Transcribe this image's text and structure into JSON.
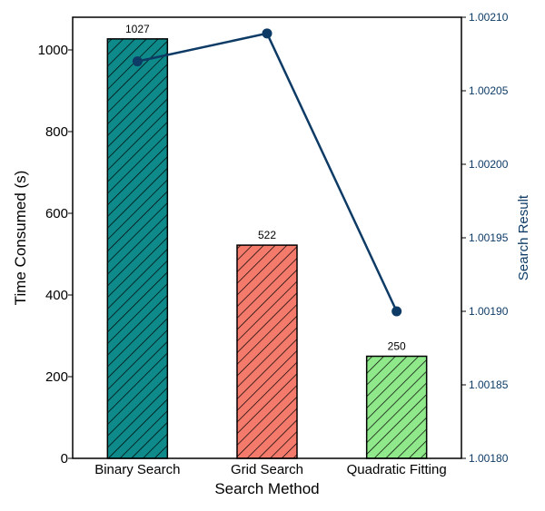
{
  "chart_data": {
    "type": "bar",
    "xlabel": "Search Method",
    "ylabel": "Time Consumed (s)",
    "y2label": "Search Result",
    "categories": [
      "Binary Search",
      "Grid Search",
      "Quadratic Fitting"
    ],
    "series": [
      {
        "name": "Time Consumed (s)",
        "type": "bar",
        "axis": "left",
        "values": [
          1027,
          522,
          250
        ],
        "colors": [
          "#0f8a8a",
          "#f47a6b",
          "#8fe88a"
        ]
      },
      {
        "name": "Search Result",
        "type": "line",
        "axis": "right",
        "values": [
          1.00207,
          1.002089,
          1.0019
        ],
        "color": "#0d3b66"
      }
    ],
    "data_labels": [
      "1027",
      "522",
      "250"
    ],
    "ylim": [
      0,
      1080
    ],
    "y2lim": [
      1.0018,
      1.0021
    ],
    "yticks": [
      "0",
      "200",
      "400",
      "600",
      "800",
      "1000"
    ],
    "y2ticks": [
      "1.00180",
      "1.00185",
      "1.00190",
      "1.00195",
      "1.00200",
      "1.00205",
      "1.00210"
    ],
    "hatch": "diagonal",
    "grid": false,
    "legend": "none"
  }
}
